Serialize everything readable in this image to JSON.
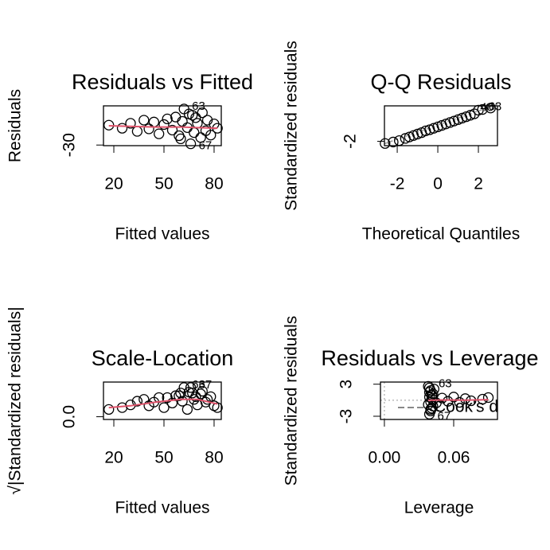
{
  "chart_data": [
    {
      "type": "scatter",
      "title": "Residuals vs Fitted",
      "xlabel": "Fitted values",
      "ylabel": "Residuals",
      "xlim": [
        13.8,
        84.3
      ],
      "ylim": [
        -31,
        33
      ],
      "xticks": [
        20,
        50,
        80
      ],
      "yticks": [
        -30
      ],
      "points": {
        "x": [
          17,
          25,
          30,
          34,
          38,
          41,
          44,
          47,
          50,
          52,
          55,
          57,
          59,
          61,
          62,
          64,
          65,
          66,
          68,
          69,
          70,
          72,
          73,
          75,
          76,
          78,
          80,
          82,
          60,
          67
        ],
        "y": [
          2,
          -3,
          5,
          -8,
          10,
          -4,
          7,
          -12,
          3,
          12,
          -6,
          15,
          -15,
          8,
          28,
          -2,
          20,
          -28,
          -10,
          14,
          5,
          -18,
          22,
          -7,
          10,
          -14,
          4,
          -3,
          -20,
          18
        ]
      },
      "smooth": {
        "color": "#df536b",
        "x": [
          17,
          30,
          45,
          60,
          70,
          82
        ],
        "y": [
          1,
          0,
          -1,
          -1,
          -2,
          -3
        ]
      },
      "labels": [
        {
          "text": "63",
          "x": 62,
          "y": 28
        },
        {
          "text": "67",
          "x": 66,
          "y": -28
        }
      ]
    },
    {
      "type": "qq",
      "title": "Q-Q Residuals",
      "xlabel": "Theoretical Quantiles",
      "ylabel": "Standardized residuals",
      "xlim": [
        -2.63,
        2.94
      ],
      "ylim": [
        -2.6,
        2.9
      ],
      "xticks": [
        -2,
        0,
        2
      ],
      "yticks": [
        -2
      ],
      "points": {
        "x": [
          -2.6,
          -2.2,
          -1.9,
          -1.6,
          -1.4,
          -1.2,
          -1.0,
          -0.8,
          -0.6,
          -0.4,
          -0.2,
          0,
          0.2,
          0.4,
          0.6,
          0.8,
          1.0,
          1.2,
          1.4,
          1.6,
          1.8,
          2.0,
          2.2,
          2.6
        ],
        "y": [
          -2.3,
          -2.1,
          -1.9,
          -1.6,
          -1.4,
          -1.2,
          -1.0,
          -0.8,
          -0.55,
          -0.4,
          -0.2,
          0,
          0.2,
          0.4,
          0.6,
          0.8,
          1.0,
          1.2,
          1.4,
          1.6,
          1.8,
          2.3,
          2.4,
          2.6
        ]
      },
      "labels": [
        {
          "text": "40",
          "x": 1.7,
          "y": 2.3
        },
        {
          "text": "63",
          "x": 2.1,
          "y": 2.4
        }
      ]
    },
    {
      "type": "scatter",
      "title": "Scale-Location",
      "xlabel": "Fitted values",
      "ylabel": "√|Standardized residuals|",
      "xlim": [
        13.8,
        84.3
      ],
      "ylim": [
        -0.15,
        1.9
      ],
      "xticks": [
        20,
        50,
        80
      ],
      "yticks": [
        {
          "value": 0,
          "label": "0.0"
        }
      ],
      "points": {
        "x": [
          17,
          25,
          30,
          34,
          38,
          41,
          44,
          47,
          50,
          52,
          55,
          57,
          59,
          61,
          62,
          64,
          65,
          66,
          68,
          69,
          70,
          72,
          73,
          75,
          76,
          78,
          80,
          82,
          60,
          67
        ],
        "y": [
          0.4,
          0.5,
          0.65,
          0.85,
          0.95,
          0.6,
          0.8,
          1.05,
          0.5,
          1.05,
          0.75,
          1.15,
          1.15,
          0.85,
          1.6,
          0.4,
          1.35,
          1.6,
          0.95,
          1.1,
          0.65,
          1.25,
          1.4,
          0.8,
          0.95,
          1.1,
          0.6,
          0.5,
          1.3,
          1.3
        ]
      },
      "smooth": {
        "color": "#df536b",
        "x": [
          17,
          30,
          45,
          60,
          70,
          82
        ],
        "y": [
          0.5,
          0.6,
          0.8,
          0.95,
          0.95,
          0.7
        ]
      },
      "labels": [
        {
          "text": "63",
          "x": 62,
          "y": 1.6
        },
        {
          "text": "67",
          "x": 66,
          "y": 1.6
        }
      ]
    },
    {
      "type": "leverage",
      "title": "Residuals vs Leverage",
      "xlabel": "Leverage",
      "ylabel": "Standardized residuals",
      "xlim": [
        -0.0034,
        0.0979
      ],
      "ylim": [
        -3.6,
        3.4
      ],
      "xticks": [
        {
          "value": 0,
          "label": "0.00"
        },
        0.06
      ],
      "yticks": [
        3,
        -3
      ],
      "points": {
        "x": [
          0.038,
          0.039,
          0.04,
          0.041,
          0.042,
          0.038,
          0.039,
          0.04,
          0.041,
          0.042,
          0.043,
          0.04,
          0.039,
          0.041,
          0.045,
          0.05,
          0.055,
          0.06,
          0.065,
          0.07,
          0.075,
          0.085,
          0.09,
          0.04,
          0.039,
          0.041
        ],
        "y": [
          2.6,
          -2.6,
          1.8,
          -1.5,
          1.2,
          -0.8,
          0.6,
          -0.3,
          0.9,
          -1.1,
          2.1,
          -2.0,
          1.5,
          0.3,
          -0.5,
          0.4,
          -0.2,
          0.6,
          -0.4,
          0.3,
          -0.1,
          0.2,
          0.5,
          -1.7,
          2.3,
          1.0
        ]
      },
      "smooth": {
        "color": "#df536b",
        "x": [
          0.038,
          0.05,
          0.07,
          0.09
        ],
        "y": [
          0,
          0.05,
          0.02,
          0.1
        ]
      },
      "labels": [
        {
          "text": "63",
          "x": 0.04,
          "y": 2.6
        },
        {
          "text": "67",
          "x": 0.039,
          "y": -2.6
        }
      ],
      "cook_label": "Cook's distance"
    }
  ]
}
